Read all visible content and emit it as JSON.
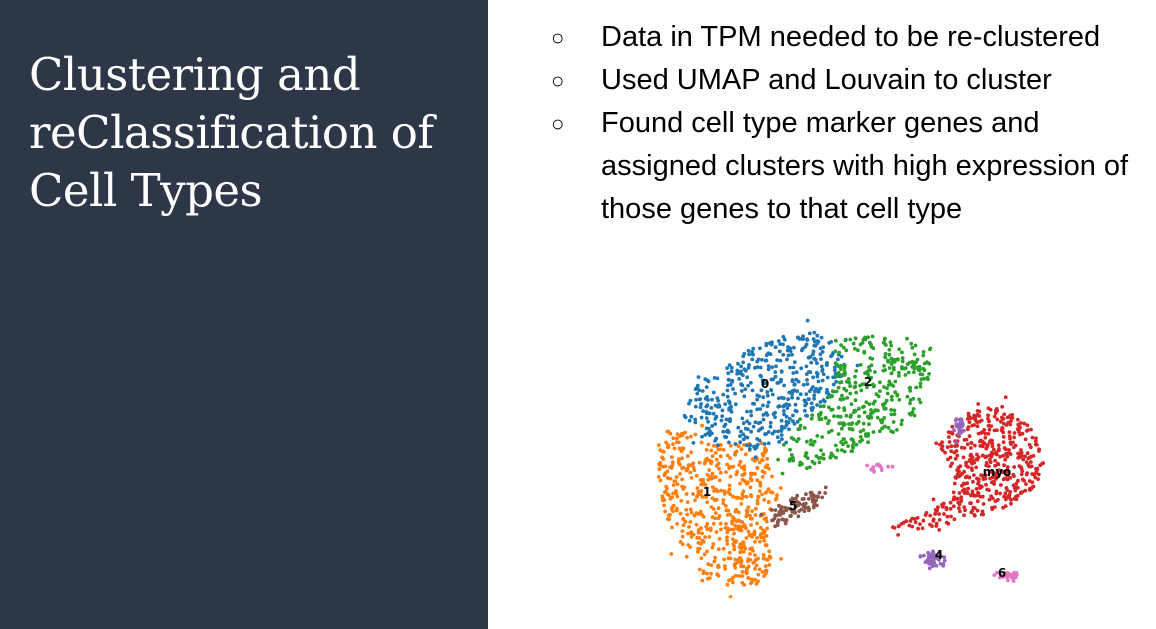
{
  "slide": {
    "title": "Clustering and reClassification of Cell Types",
    "bullets": [
      {
        "marker": "○",
        "text": "Data in TPM needed to be re-clustered"
      },
      {
        "marker": "○",
        "text": "Used UMAP and Louvain to cluster"
      },
      {
        "marker": "○",
        "text": "Found cell type marker genes and assigned clusters with high expression of those genes to that cell type"
      }
    ]
  },
  "colors": {
    "panel_background": "#2d3748",
    "title_text": "#ffffff",
    "body_text": "#000000"
  },
  "chart_data": {
    "type": "scatter",
    "title": "",
    "xlabel": "",
    "ylabel": "",
    "axes_visible": false,
    "grid": false,
    "clusters": [
      {
        "label": "0",
        "color": "#1f77b4"
      },
      {
        "label": "1",
        "color": "#ff7f0e"
      },
      {
        "label": "2",
        "color": "#2ca02c"
      },
      {
        "label": "myo",
        "color": "#d62728"
      },
      {
        "label": "4",
        "color": "#9467bd"
      },
      {
        "label": "5",
        "color": "#8c564b"
      },
      {
        "label": "6",
        "color": "#e377c2"
      }
    ]
  }
}
